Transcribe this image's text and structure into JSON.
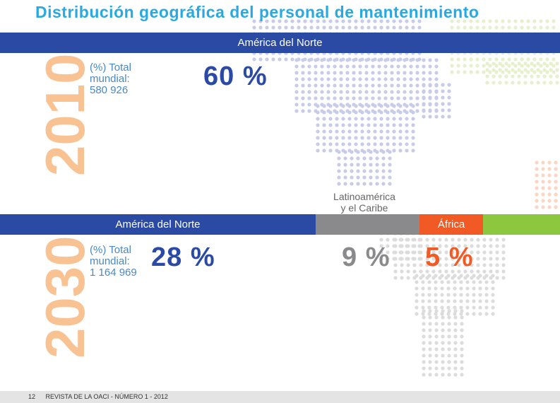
{
  "title": "Distribución geográfica del personal de mantenimiento",
  "colors": {
    "north_america": "#2a4aa3",
    "latin_america": "#8a8a8c",
    "africa": "#f15a24",
    "other": "#8dc63f",
    "year_text": "#f9c293",
    "title": "#29a9e1"
  },
  "chart_data": [
    {
      "type": "bar",
      "orientation": "horizontal-stacked",
      "year": "2010",
      "total_label": "(%) Total mundial:",
      "total_label_lines": [
        "(%) Total",
        "mundial:"
      ],
      "total_value": "580 926",
      "segments": [
        {
          "name": "América del Norte",
          "value": 60,
          "value_label": "60 %"
        }
      ]
    },
    {
      "type": "bar",
      "orientation": "horizontal-stacked",
      "year": "2030",
      "total_label": "(%) Total mundial:",
      "total_label_lines": [
        "(%) Total",
        "mundial:"
      ],
      "total_value": "1 164 969",
      "segments": [
        {
          "name": "América del Norte",
          "value": 28,
          "value_label": "28 %"
        },
        {
          "name": "Latinoamérica y el Caribe",
          "name_lines": [
            "Latinoamérica",
            "y el Caribe"
          ],
          "value": 9,
          "value_label": "9 %"
        },
        {
          "name": "África",
          "value": 5,
          "value_label": "5 %"
        }
      ]
    }
  ],
  "footer": {
    "page_number": "12",
    "publication": "REVISTA DE LA OACI - NÚMERO 1 - 2012"
  }
}
